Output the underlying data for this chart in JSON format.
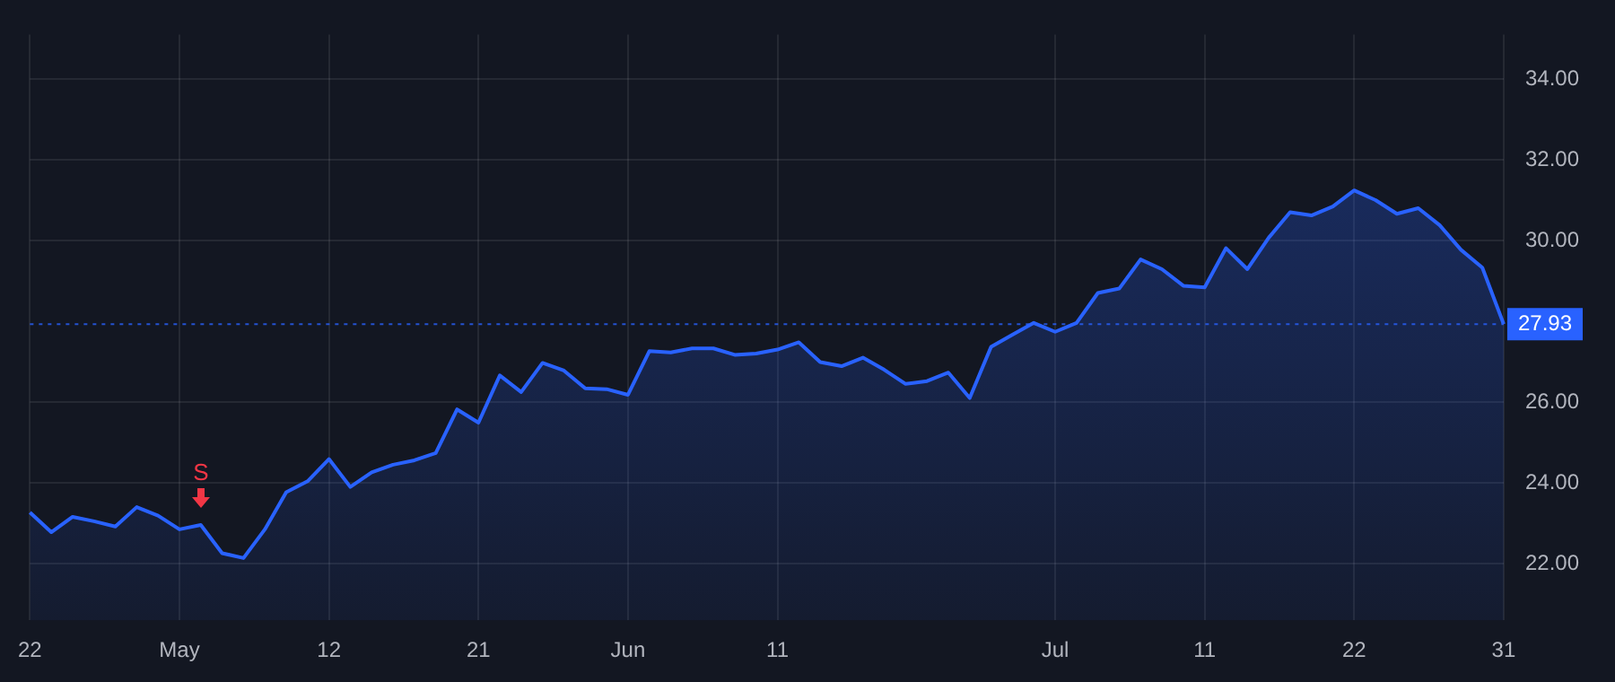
{
  "chart_data": {
    "type": "area",
    "categories": [
      "22",
      null,
      null,
      null,
      null,
      null,
      null,
      "May",
      null,
      null,
      null,
      null,
      null,
      null,
      "12",
      null,
      null,
      null,
      null,
      null,
      null,
      "21",
      null,
      null,
      null,
      null,
      null,
      null,
      "Jun",
      null,
      null,
      null,
      null,
      null,
      null,
      "11",
      null,
      null,
      null,
      null,
      null,
      null,
      null,
      null,
      null,
      null,
      null,
      null,
      "Jul",
      null,
      null,
      null,
      null,
      null,
      null,
      "11",
      null,
      null,
      null,
      null,
      null,
      null,
      "22",
      null,
      null,
      null,
      null,
      null,
      null,
      "31"
    ],
    "series": [
      {
        "color": "#2962ff",
        "values": [
          23.27,
          22.78,
          23.16,
          23.05,
          22.92,
          23.4,
          23.19,
          22.85,
          22.96,
          22.26,
          22.14,
          22.85,
          23.77,
          24.04,
          24.59,
          23.9,
          24.26,
          24.45,
          24.56,
          24.74,
          25.82,
          25.49,
          26.66,
          26.25,
          26.97,
          26.78,
          26.34,
          26.32,
          26.18,
          27.26,
          27.23,
          27.33,
          27.33,
          27.17,
          27.2,
          27.3,
          27.48,
          26.99,
          26.89,
          27.1,
          26.8,
          26.45,
          26.52,
          26.73,
          26.1,
          27.37,
          27.67,
          27.96,
          27.74,
          27.96,
          28.7,
          28.81,
          29.53,
          29.29,
          28.88,
          28.84,
          29.81,
          29.29,
          30.07,
          30.7,
          30.62,
          30.84,
          31.24,
          31.0,
          30.66,
          30.8,
          30.38,
          29.77,
          29.33,
          27.93
        ]
      }
    ],
    "ylim": [
      20.6,
      35.1
    ],
    "yticks": [
      {
        "value": 22,
        "label": "22.00"
      },
      {
        "value": 24,
        "label": "24.00"
      },
      {
        "value": 26,
        "label": "26.00"
      },
      {
        "value": 30,
        "label": "30.00"
      },
      {
        "value": 32,
        "label": "32.00"
      },
      {
        "value": 34,
        "label": "34.00"
      }
    ],
    "ref_lines": [
      {
        "axis": "y",
        "value": 27.93,
        "label": "27.93",
        "color": "#2962ff",
        "line_style": "dotted"
      }
    ],
    "annotations": [
      {
        "text": "S",
        "y": 22.96
      }
    ],
    "grid": true,
    "legend": false,
    "marker": "none",
    "line_style": "solid"
  }
}
